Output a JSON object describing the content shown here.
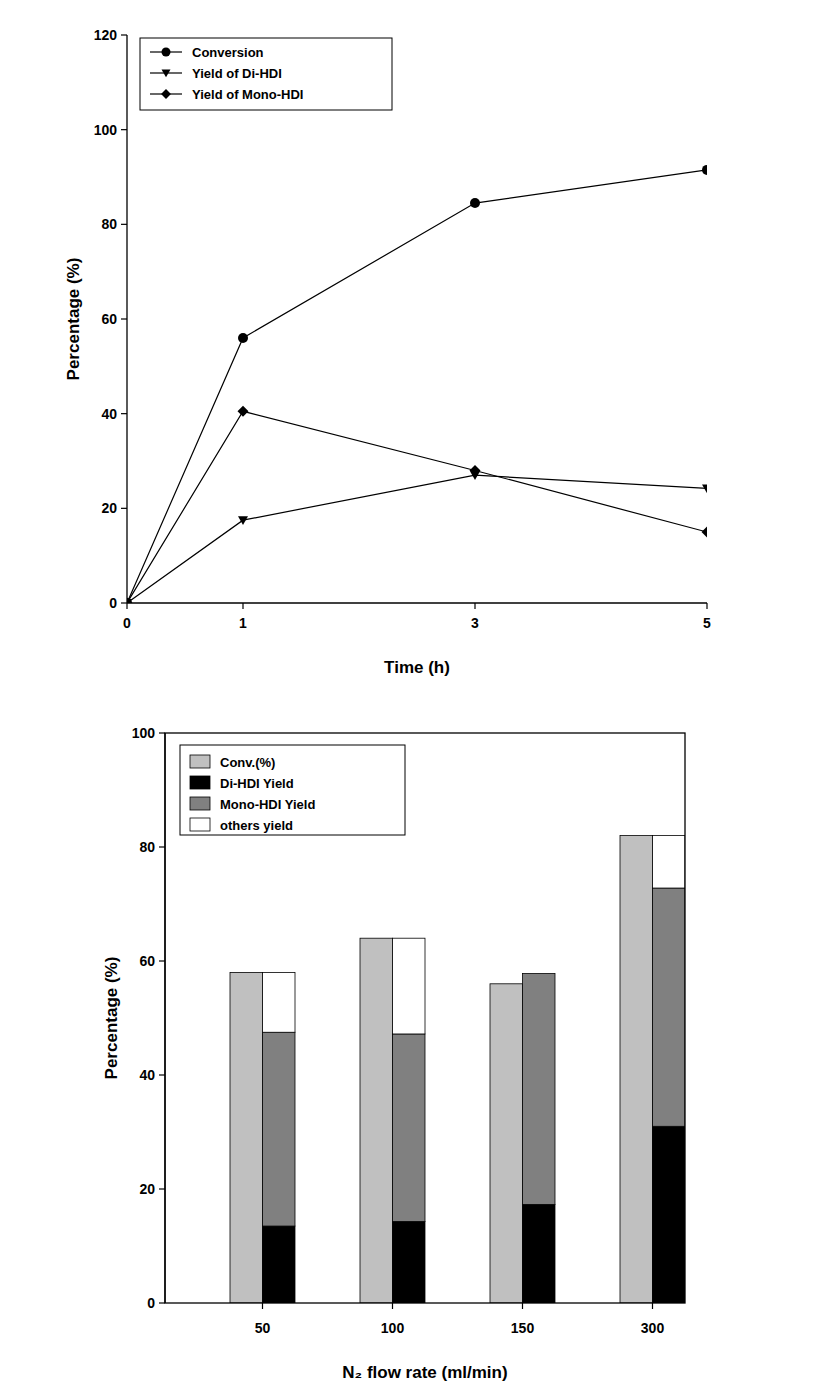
{
  "chart_data": [
    {
      "type": "line",
      "x_label": "Time (h)",
      "y_label": "Percentage (%)",
      "x": [
        0,
        1,
        3,
        5
      ],
      "xlim": [
        0,
        5
      ],
      "xticks": [
        0,
        1,
        3,
        5
      ],
      "ylim": [
        0,
        120
      ],
      "yticks": [
        0,
        20,
        40,
        60,
        80,
        100,
        120
      ],
      "legend": "top-left",
      "series": [
        {
          "name": "Conversion",
          "color": "#000000",
          "marker": "circle",
          "values": [
            0,
            56,
            84.5,
            91.5
          ]
        },
        {
          "name": "Yield of Di-HDI",
          "color": "#000000",
          "marker": "triangle-down",
          "values": [
            0,
            17.5,
            27,
            24.2
          ]
        },
        {
          "name": "Yield of Mono-HDI",
          "color": "#000000",
          "marker": "diamond",
          "values": [
            0,
            40.5,
            28,
            15
          ]
        }
      ]
    },
    {
      "type": "bar",
      "x_label": "N₂ flow rate (ml/min)",
      "y_label": "Percentage (%)",
      "categories": [
        "50",
        "100",
        "150",
        "300"
      ],
      "ylim": [
        0,
        100
      ],
      "yticks": [
        0,
        20,
        40,
        60,
        80,
        100
      ],
      "legend": "top-left",
      "series": [
        {
          "name": "Conv.(%)",
          "color": "#c0c0c0",
          "values": [
            58,
            64,
            56,
            82
          ]
        },
        {
          "name": "Di-HDI Yield",
          "color": "#000000",
          "stacked": true,
          "values": [
            13.5,
            14.3,
            17.3,
            31
          ]
        },
        {
          "name": "Mono-HDI Yield",
          "color": "#808080",
          "stacked": true,
          "values": [
            34,
            32.9,
            40.5,
            41.8
          ]
        },
        {
          "name": "others yield",
          "color": "#ffffff",
          "stacked": true,
          "values": [
            10.5,
            16.8,
            0,
            9.2
          ]
        }
      ]
    }
  ]
}
